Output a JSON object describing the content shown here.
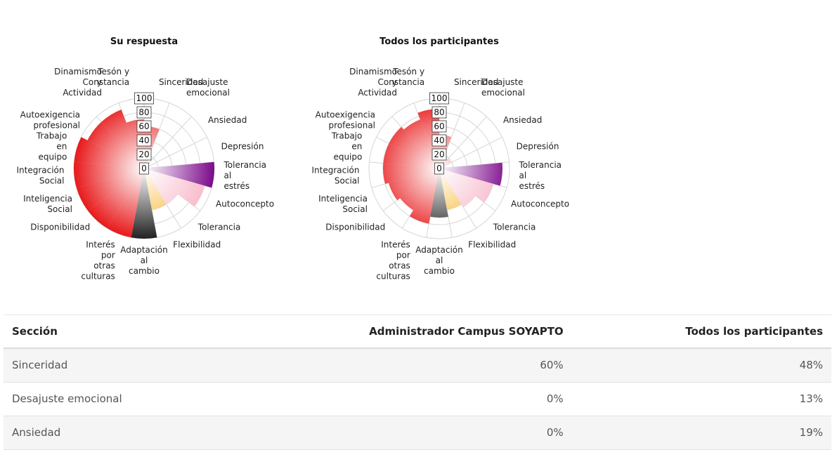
{
  "chart_data": [
    {
      "type": "polar-area",
      "title": "Su respuesta",
      "rlim": [
        0,
        100
      ],
      "r_ticks": [
        "0",
        "20",
        "40",
        "60",
        "80",
        "100"
      ],
      "categories": [
        "Sinceridad",
        "Desajuste emocional",
        "Ansiedad",
        "Depresión",
        "Tolerancia al estrés",
        "Autoconcepto",
        "Tolerancia",
        "Flexibilidad",
        "Adaptación al cambio",
        "Interés por otras culturas",
        "Disponibilidad",
        "Inteligencia Social",
        "Integración Social",
        "Trabajo en equipo",
        "Autoexigencia profesional",
        "Dinamismo y Actividad",
        "Tesón y Constancia"
      ],
      "values": [
        60,
        0,
        0,
        0,
        100,
        90,
        60,
        60,
        100,
        100,
        100,
        100,
        100,
        100,
        90,
        90,
        70
      ]
    },
    {
      "type": "polar-area",
      "title": "Todos los participantes",
      "rlim": [
        0,
        100
      ],
      "r_ticks": [
        "0",
        "20",
        "40",
        "60",
        "80",
        "100"
      ],
      "categories": [
        "Sinceridad",
        "Desajuste emocional",
        "Ansiedad",
        "Depresión",
        "Tolerancia al estrés",
        "Autoconcepto",
        "Tolerancia",
        "Flexibilidad",
        "Adaptación al cambio",
        "Interés por otras culturas",
        "Disponibilidad",
        "Inteligencia Social",
        "Integración Social",
        "Trabajo en equipo",
        "Autoexigencia profesional",
        "Dinamismo y Actividad",
        "Tesón y Constancia"
      ],
      "values": [
        48,
        13,
        19,
        10,
        90,
        80,
        65,
        60,
        70,
        80,
        70,
        75,
        80,
        80,
        80,
        75,
        85
      ]
    }
  ],
  "labels": [
    [
      "Sinceridad"
    ],
    [
      "Desajuste",
      "emocional"
    ],
    [
      "Ansiedad"
    ],
    [
      "Depresión"
    ],
    [
      "Tolerancia",
      "al",
      "estrés"
    ],
    [
      "Autoconcepto"
    ],
    [
      "Tolerancia"
    ],
    [
      "Flexibilidad"
    ],
    [
      "Adaptación",
      "al",
      "cambio"
    ],
    [
      "Interés",
      "por",
      "otras",
      "culturas"
    ],
    [
      "Disponibilidad"
    ],
    [
      "Inteligencia",
      "Social"
    ],
    [
      "Integración",
      "Social"
    ],
    [
      "Trabajo",
      "en",
      "equipo"
    ],
    [
      "Autoexigencia",
      "profesional"
    ],
    [
      "Dinamismo",
      "y",
      "Actividad"
    ],
    [
      "Tesón y",
      "Constancia"
    ]
  ],
  "colors": {
    "red": "#e8191b",
    "purple": "#7b0a8a",
    "pink": "#f7b6c8",
    "orange": "#f7b733",
    "dark": "#222222",
    "grid": "#d6d6d6"
  },
  "table": {
    "headers": [
      "Sección",
      "Administrador Campus SOYAPTO",
      "Todos los participantes"
    ],
    "rows": [
      [
        "Sinceridad",
        "60%",
        "48%"
      ],
      [
        "Desajuste emocional",
        "0%",
        "13%"
      ],
      [
        "Ansiedad",
        "0%",
        "19%"
      ]
    ]
  }
}
